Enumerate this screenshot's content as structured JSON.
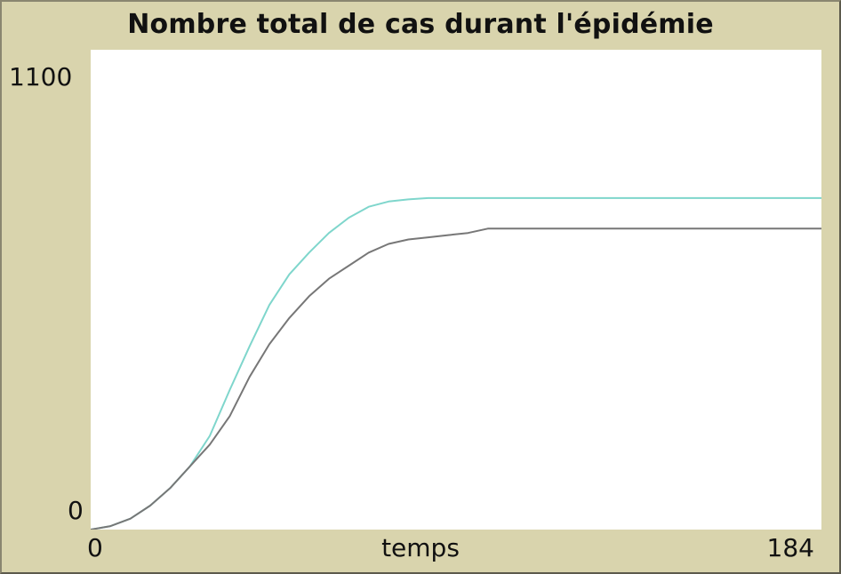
{
  "plot": {
    "title": "Nombre total de cas durant l'épidémie",
    "xlabel": "temps",
    "x_min_label": "0",
    "x_max_label": "184",
    "y_min_label": "0",
    "y_max_label": "1100"
  },
  "chart_data": {
    "type": "line",
    "title": "Nombre total de cas durant l'épidémie",
    "xlabel": "temps",
    "ylabel": "",
    "xlim": [
      0,
      184
    ],
    "ylim": [
      0,
      1100
    ],
    "grid": false,
    "legend": "none",
    "series": [
      {
        "color": "#7fd6cc",
        "x": [
          0,
          5,
          10,
          15,
          20,
          25,
          30,
          35,
          40,
          45,
          50,
          55,
          60,
          65,
          70,
          75,
          80,
          85,
          90,
          95,
          100,
          120,
          140,
          160,
          184
        ],
        "y": [
          0,
          8,
          25,
          55,
          95,
          145,
          215,
          320,
          420,
          515,
          585,
          635,
          680,
          715,
          740,
          752,
          757,
          760,
          760,
          760,
          760,
          760,
          760,
          760,
          760
        ]
      },
      {
        "color": "#777777",
        "x": [
          0,
          5,
          10,
          15,
          20,
          25,
          30,
          35,
          40,
          45,
          50,
          55,
          60,
          65,
          70,
          75,
          80,
          85,
          90,
          95,
          100,
          120,
          140,
          160,
          184
        ],
        "y": [
          0,
          8,
          25,
          55,
          95,
          145,
          195,
          260,
          350,
          425,
          485,
          535,
          575,
          605,
          635,
          655,
          665,
          670,
          675,
          680,
          690,
          690,
          690,
          690,
          690
        ]
      }
    ]
  }
}
